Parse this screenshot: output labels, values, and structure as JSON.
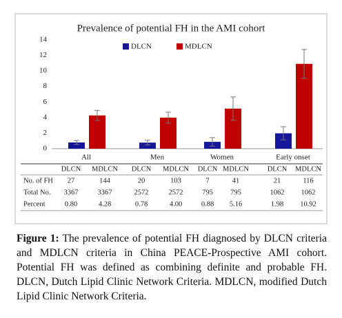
{
  "chart_data": {
    "type": "bar",
    "title": "Prevalence of potential FH in the AMI cohort",
    "categories": [
      "All",
      "Men",
      "Women",
      "Early onset"
    ],
    "series": [
      {
        "name": "DLCN",
        "color": "#16169a",
        "values": [
          0.8,
          0.78,
          0.88,
          1.98
        ],
        "errors": [
          0.25,
          0.3,
          0.55,
          0.85
        ]
      },
      {
        "name": "MDLCN",
        "color": "#c00000",
        "values": [
          4.28,
          4.0,
          5.16,
          10.92
        ],
        "errors": [
          0.65,
          0.7,
          1.5,
          1.85
        ]
      }
    ],
    "ylim": [
      0,
      14
    ],
    "yticks": [
      0,
      2,
      4,
      6,
      8,
      10,
      12,
      14
    ],
    "grid": false,
    "legend": "top"
  },
  "table": {
    "header": [
      "DLCN",
      "MDLCN",
      "DLCN",
      "MDLCN",
      "DLCN",
      "MDLCN",
      "DLCN",
      "MDLCN"
    ],
    "rows": [
      [
        "No. of FH",
        "27",
        "144",
        "20",
        "103",
        "7",
        "41",
        "21",
        "116"
      ],
      [
        "Total No.",
        "3367",
        "3367",
        "2572",
        "2572",
        "795",
        "795",
        "1062",
        "1062"
      ],
      [
        "Percent",
        "0.80",
        "4.28",
        "0.78",
        "4.00",
        "0.88",
        "5.16",
        "1.98",
        "10.92"
      ]
    ]
  },
  "caption": {
    "label": "Figure 1:",
    "text": "The prevalence of potential FH diagnosed by DLCN criteria and MDLCN criteria in China PEACE-Prospective AMI cohort. Potential FH was defined as combining definite and probable FH. DLCN, Dutch Lipid Clinic Network Criteria. MDLCN, modified Dutch Lipid Clinic Network Criteria."
  }
}
